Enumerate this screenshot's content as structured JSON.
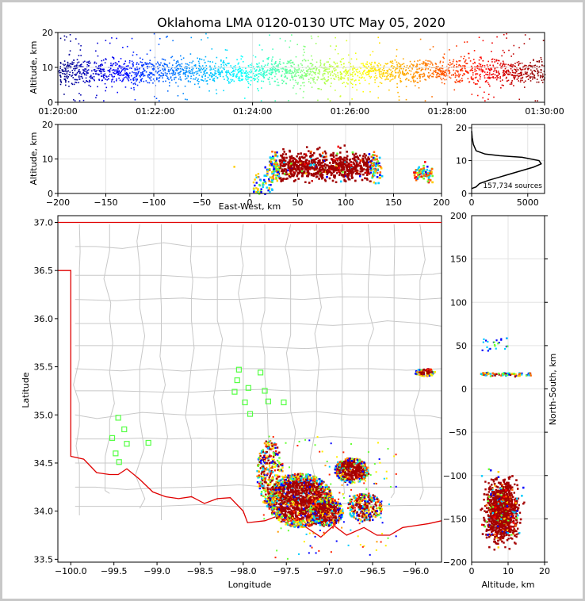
{
  "chart_data": [
    {
      "type": "scatter",
      "panel": "altitude-time",
      "title": "Oklahoma LMA 0120-0130 UTC May 05, 2020",
      "ylabel": "Altitude, km",
      "xlabel": "",
      "xticks": [
        "01:20:00",
        "01:22:00",
        "01:24:00",
        "01:26:00",
        "01:28:00",
        "01:30:00"
      ],
      "yticks": [
        "0",
        "10",
        "20"
      ],
      "xlim_minutes": [
        0,
        10
      ],
      "ylim": [
        0,
        20
      ],
      "colormap": "jet (time)",
      "grid": true
    },
    {
      "type": "scatter",
      "panel": "altitude-eastwest",
      "xlabel": "East-West, km",
      "ylabel": "Altitude, km",
      "xticks": [
        "−200",
        "−150",
        "−100",
        "−50",
        "0",
        "50",
        "100",
        "150",
        "200"
      ],
      "yticks": [
        "0",
        "10",
        "20"
      ],
      "xlim": [
        -200,
        200
      ],
      "ylim": [
        0,
        20
      ],
      "grid": true
    },
    {
      "type": "line",
      "panel": "altitude-histogram",
      "annotation": "157,734 sources",
      "xticks": [
        "0",
        "5000"
      ],
      "yticks": [
        "0",
        "10",
        "20"
      ],
      "xlim": [
        0,
        6500
      ],
      "ylim": [
        0,
        21
      ],
      "profile": [
        [
          0,
          1.5
        ],
        [
          400,
          2
        ],
        [
          700,
          3
        ],
        [
          1500,
          4
        ],
        [
          2500,
          5
        ],
        [
          3500,
          6
        ],
        [
          4500,
          7
        ],
        [
          5500,
          8
        ],
        [
          6200,
          9
        ],
        [
          6000,
          10
        ],
        [
          4500,
          11
        ],
        [
          2500,
          11.5
        ],
        [
          1200,
          12
        ],
        [
          400,
          13
        ],
        [
          150,
          15
        ],
        [
          50,
          17
        ],
        [
          0,
          19
        ]
      ],
      "grid": true
    },
    {
      "type": "scatter",
      "panel": "plan-view",
      "xlabel": "Longitude",
      "ylabel": "Latitude",
      "xticks": [
        "−100.0",
        "−99.5",
        "−99.0",
        "−98.5",
        "−98.0",
        "−97.5",
        "−97.0",
        "−96.5",
        "−96.0"
      ],
      "yticks": [
        "33.5",
        "34.0",
        "34.5",
        "35.0",
        "35.5",
        "36.0",
        "36.5",
        "37.0"
      ],
      "xlim": [
        -100.15,
        -95.7
      ],
      "ylim": [
        33.47,
        37.07
      ],
      "stations": [
        [
          -99.45,
          34.97
        ],
        [
          -99.38,
          34.85
        ],
        [
          -99.52,
          34.76
        ],
        [
          -99.35,
          34.7
        ],
        [
          -99.1,
          34.71
        ],
        [
          -99.48,
          34.6
        ],
        [
          -99.44,
          34.51
        ],
        [
          -98.05,
          35.47
        ],
        [
          -97.8,
          35.44
        ],
        [
          -98.07,
          35.36
        ],
        [
          -97.94,
          35.28
        ],
        [
          -97.75,
          35.25
        ],
        [
          -98.1,
          35.24
        ],
        [
          -97.98,
          35.13
        ],
        [
          -97.71,
          35.14
        ],
        [
          -97.53,
          35.13
        ],
        [
          -97.92,
          35.01
        ]
      ],
      "grid": true
    },
    {
      "type": "scatter",
      "panel": "altitude-northsouth",
      "xlabel": "Altitude, km",
      "ylabel": "North-South, km",
      "xticks": [
        "0",
        "10",
        "20"
      ],
      "yticks": [
        "−200",
        "−150",
        "−100",
        "−50",
        "0",
        "50",
        "100",
        "150",
        "200"
      ],
      "xlim": [
        0,
        20
      ],
      "ylim": [
        -200,
        200
      ],
      "grid": true
    }
  ]
}
